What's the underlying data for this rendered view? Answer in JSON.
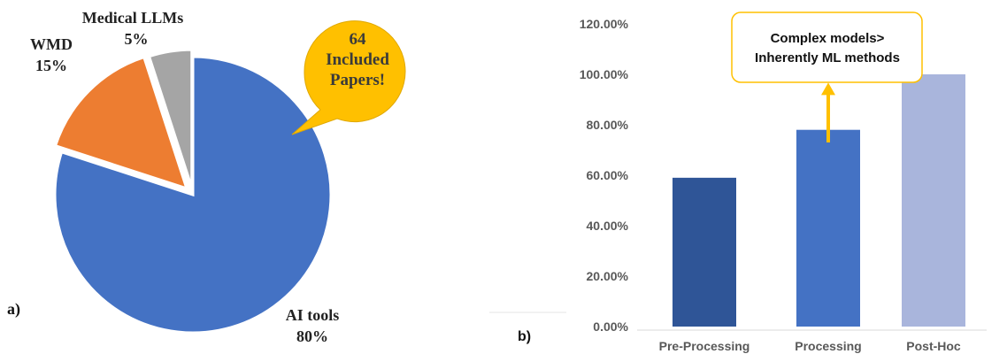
{
  "colors": {
    "ai_tools": "#4472C4",
    "wmd": "#ED7D31",
    "medical_llms": "#A5A5A5",
    "callout_fill": "#FFC000",
    "bar_pre": "#2F5597",
    "bar_processing": "#4472C4",
    "bar_posthoc": "#A9B5DC",
    "arrow": "#FFC000",
    "axis_text": "#595959"
  },
  "chart_data": [
    {
      "type": "pie",
      "panel_label": "a)",
      "slices": [
        {
          "label": "AI tools",
          "value": 80,
          "value_label": "80%"
        },
        {
          "label": "WMD",
          "value": 15,
          "value_label": "15%"
        },
        {
          "label": "Medical LLMs",
          "value": 5,
          "value_label": "5%"
        }
      ],
      "callout": {
        "lines": [
          "64",
          "Included",
          "Papers!"
        ]
      }
    },
    {
      "type": "bar",
      "panel_label": "b)",
      "categories": [
        "Pre-Processing",
        "Processing",
        "Post-Hoc"
      ],
      "values": [
        59,
        78,
        100
      ],
      "ylim": [
        0,
        120
      ],
      "yticks": [
        {
          "value": 0,
          "label": "0.00%"
        },
        {
          "value": 20,
          "label": "20.00%"
        },
        {
          "value": 40,
          "label": "40.00%"
        },
        {
          "value": 60,
          "label": "60.00%"
        },
        {
          "value": 80,
          "label": "80.00%"
        },
        {
          "value": 100,
          "label": "100.00%"
        },
        {
          "value": 120,
          "label": "120.00%"
        }
      ],
      "grid": false,
      "annotation": {
        "lines": [
          "Complex models>",
          "Inherently ML methods"
        ],
        "arrow_from_value": 73,
        "arrow_to_value": 96
      }
    }
  ]
}
